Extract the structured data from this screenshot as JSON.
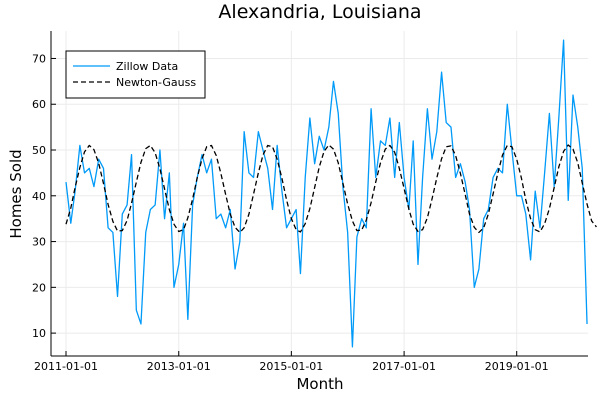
{
  "chart_data": {
    "type": "line",
    "title": "Alexandria, Louisiana",
    "xlabel": "Month",
    "ylabel": "Homes Sold",
    "x_start": "2011-01-01",
    "x_end": "2020-01-01",
    "x_ticks": [
      "2011-01-01",
      "2013-01-01",
      "2015-01-01",
      "2017-01-01",
      "2019-01-01"
    ],
    "ylim": [
      5,
      76
    ],
    "y_ticks": [
      10,
      20,
      30,
      40,
      50,
      60,
      70
    ],
    "grid": true,
    "legend_position": "top-left",
    "colors": {
      "zillow": "#009AF9",
      "fit": "#000000",
      "grid": "#EBEBEB"
    },
    "series": [
      {
        "name": "Zillow Data",
        "style": "solid",
        "values": [
          43,
          34,
          41,
          51,
          45,
          46,
          42,
          48,
          46,
          33,
          32,
          18,
          36,
          38,
          49,
          15,
          12,
          32,
          37,
          38,
          50,
          35,
          45,
          20,
          25,
          34,
          13,
          38,
          44,
          49,
          45,
          48,
          35,
          36,
          33,
          37,
          24,
          30,
          54,
          45,
          44,
          54,
          50,
          46,
          37,
          51,
          41,
          33,
          35,
          37,
          23,
          44,
          57,
          47,
          53,
          50,
          55,
          65,
          58,
          42,
          32,
          7,
          31,
          35,
          33,
          59,
          44,
          52,
          51,
          57,
          44,
          56,
          44,
          37,
          52,
          25,
          44,
          59,
          48,
          54,
          67,
          56,
          55,
          44,
          47,
          43,
          37,
          20,
          24,
          35,
          37,
          44,
          46,
          45,
          60,
          50,
          40,
          40,
          36,
          26,
          41,
          33,
          45,
          58,
          42,
          57,
          74,
          39,
          62,
          55,
          46,
          12
        ]
      },
      {
        "name": "Newton-Gauss",
        "style": "dashed",
        "values": [
          33.8,
          37.3,
          41.8,
          46.2,
          49.6,
          51.0,
          50.1,
          47.1,
          42.7,
          38.1,
          34.4,
          32.3,
          32.4,
          34.6,
          38.4,
          43.0,
          47.3,
          50.3,
          51.0,
          49.4,
          45.9,
          41.5,
          37.0,
          33.8,
          32.2,
          32.6,
          35.2,
          39.3,
          44.0,
          48.1,
          50.7,
          51.0,
          48.8,
          44.9,
          40.3,
          36.0,
          33.1,
          32.0,
          33.0,
          36.0,
          40.4,
          45.0,
          48.9,
          51.0,
          50.7,
          48.0,
          43.8,
          39.1,
          35.0,
          32.6,
          32.1,
          33.9,
          37.2,
          41.8,
          46.3,
          49.7,
          51.1,
          50.2,
          47.2,
          42.8,
          38.2,
          34.5,
          32.4,
          32.5,
          34.7,
          38.5,
          43.0,
          47.2,
          50.2,
          51.0,
          49.5,
          46.0,
          41.6,
          37.1,
          33.8,
          32.2,
          32.6,
          35.2,
          39.3,
          43.9,
          48.1,
          50.7,
          50.9,
          48.8,
          44.9,
          40.3,
          36.0,
          33.1,
          32.0,
          33.0,
          36.0,
          40.4,
          45.0,
          48.9,
          51.0,
          50.7,
          48.0,
          43.8,
          39.1,
          35.0,
          32.6,
          32.1,
          33.9,
          37.2,
          41.8,
          46.3,
          49.7,
          51.1,
          50.2,
          47.2,
          42.8,
          38.2,
          34.5,
          33.2
        ]
      }
    ]
  }
}
